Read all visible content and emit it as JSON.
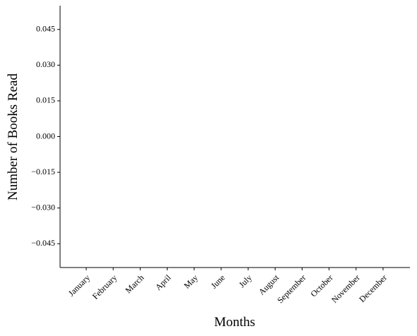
{
  "chart_data": {
    "type": "bar",
    "x_label": "Months",
    "y_label": "Number of Books Read",
    "categories": [
      "January",
      "February",
      "March",
      "April",
      "May",
      "June",
      "July",
      "August",
      "September",
      "October",
      "November",
      "December"
    ],
    "values": [
      0,
      0,
      0,
      0,
      0,
      0,
      0,
      0,
      0,
      0,
      0,
      0
    ],
    "ylim": [
      -0.055,
      0.055
    ],
    "yticks": [
      {
        "value": -0.045,
        "label": "−0.045"
      },
      {
        "value": -0.03,
        "label": "−0.030"
      },
      {
        "value": -0.015,
        "label": "−0.015"
      },
      {
        "value": 0,
        "label": "0.000"
      },
      0.015,
      {
        "value": 0.03,
        "label": "0.030"
      },
      0.045
    ],
    "grid": false
  }
}
